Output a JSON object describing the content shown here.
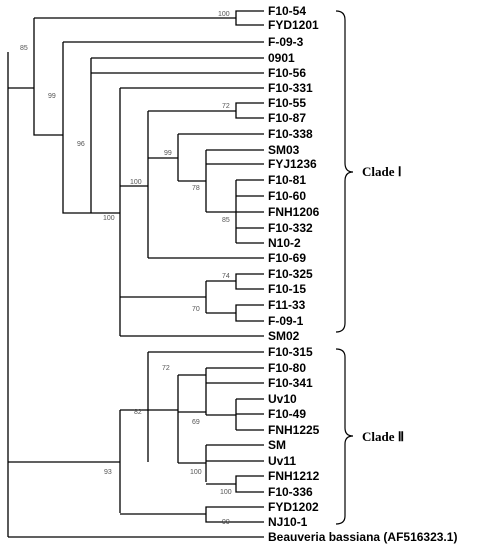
{
  "taxa": [
    "F10-54",
    "FYD1201",
    "F-09-3",
    "0901",
    "F10-56",
    "F10-331",
    "F10-55",
    "F10-87",
    "F10-338",
    "SM03",
    "FYJ1236",
    "F10-81",
    "F10-60",
    "FNH1206",
    "F10-332",
    "N10-2",
    "F10-69",
    "F10-325",
    "F10-15",
    "F11-33",
    "F-09-1",
    "SM02",
    "F10-315",
    "F10-80",
    "F10-341",
    "Uv10",
    "F10-49",
    "FNH1225",
    "SM",
    "Uv11",
    "FNH1212",
    "F10-336",
    "FYD1202",
    "NJ10-1",
    "Beauveria bassiana (AF516323.1)"
  ],
  "bootstrap": [
    "100",
    "85",
    "99",
    "96",
    "72",
    "99",
    "100",
    "78",
    "85",
    "100",
    "74",
    "70",
    "72",
    "82",
    "69",
    "100",
    "93",
    "100",
    "99"
  ],
  "clades": [
    {
      "label": "Clade Ⅰ"
    },
    {
      "label": "Clade Ⅱ"
    }
  ]
}
